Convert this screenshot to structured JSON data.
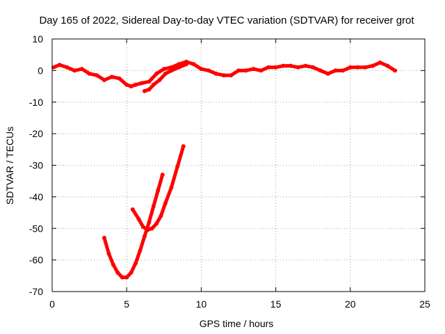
{
  "chart_data": {
    "type": "line",
    "title": "Day 165 of 2022, Sidereal Day-to-day VTEC variation (SDTVAR) for receiver grot",
    "xlabel": "GPS time / hours",
    "ylabel": "SDTVAR / TECUs",
    "xlim": [
      0,
      25
    ],
    "ylim": [
      -70,
      10
    ],
    "xticks": [
      0,
      5,
      10,
      15,
      20,
      25
    ],
    "yticks": [
      10,
      0,
      -10,
      -20,
      -30,
      -40,
      -50,
      -60,
      -70
    ],
    "grid": true,
    "legend": "none",
    "color": "#ff0000",
    "series": [
      {
        "x": [
          0.1,
          0.5,
          1.0,
          1.5,
          2.0,
          2.5,
          3.0,
          3.5,
          4.0,
          4.5,
          5.0,
          5.3,
          5.6,
          6.0,
          6.5,
          7.0,
          7.5,
          8.0,
          8.5,
          9.0,
          9.5,
          10.0,
          10.5,
          11.0,
          11.5,
          12.0,
          12.5,
          13.0,
          13.5,
          14.0,
          14.5,
          15.0,
          15.5,
          16.0,
          16.5,
          17.0,
          17.5,
          18.0,
          18.5,
          19.0,
          19.5,
          20.0,
          20.5,
          21.0,
          21.5,
          22.0,
          22.5,
          23.0
        ],
        "y": [
          1,
          1.8,
          1,
          0,
          0.5,
          -1,
          -1.5,
          -3,
          -2,
          -2.5,
          -4.5,
          -5,
          -4.5,
          -4,
          -3.5,
          -1,
          0.5,
          1,
          2,
          2.8,
          2,
          0.5,
          0,
          -1,
          -1.5,
          -1.5,
          0,
          0,
          0.5,
          0,
          1,
          1,
          1.5,
          1.5,
          1,
          1.5,
          1,
          0,
          -1,
          0,
          0,
          1,
          1,
          1,
          1.5,
          2.5,
          1.5,
          0
        ]
      },
      {
        "x": [
          6.2,
          6.5,
          6.8,
          7.2,
          7.6,
          8.0,
          8.5,
          9.0
        ],
        "y": [
          -6.5,
          -6,
          -4.5,
          -3,
          -1,
          0,
          1,
          2
        ]
      },
      {
        "x": [
          3.5,
          3.8,
          4.1,
          4.4,
          4.7,
          5.0,
          5.3,
          5.6,
          5.9,
          6.2,
          6.5,
          6.8,
          7.1,
          7.4
        ],
        "y": [
          -53,
          -58,
          -61.5,
          -64,
          -65.5,
          -65.5,
          -64,
          -61,
          -57,
          -52.5,
          -48,
          -43,
          -38,
          -33
        ]
      },
      {
        "x": [
          5.4,
          5.8,
          6.1,
          6.4,
          6.7,
          7.0,
          7.3,
          7.6,
          8.0,
          8.4,
          8.8
        ],
        "y": [
          -44,
          -47,
          -49.5,
          -50.5,
          -50,
          -48.5,
          -46,
          -42,
          -37,
          -30.5,
          -24
        ]
      }
    ]
  }
}
